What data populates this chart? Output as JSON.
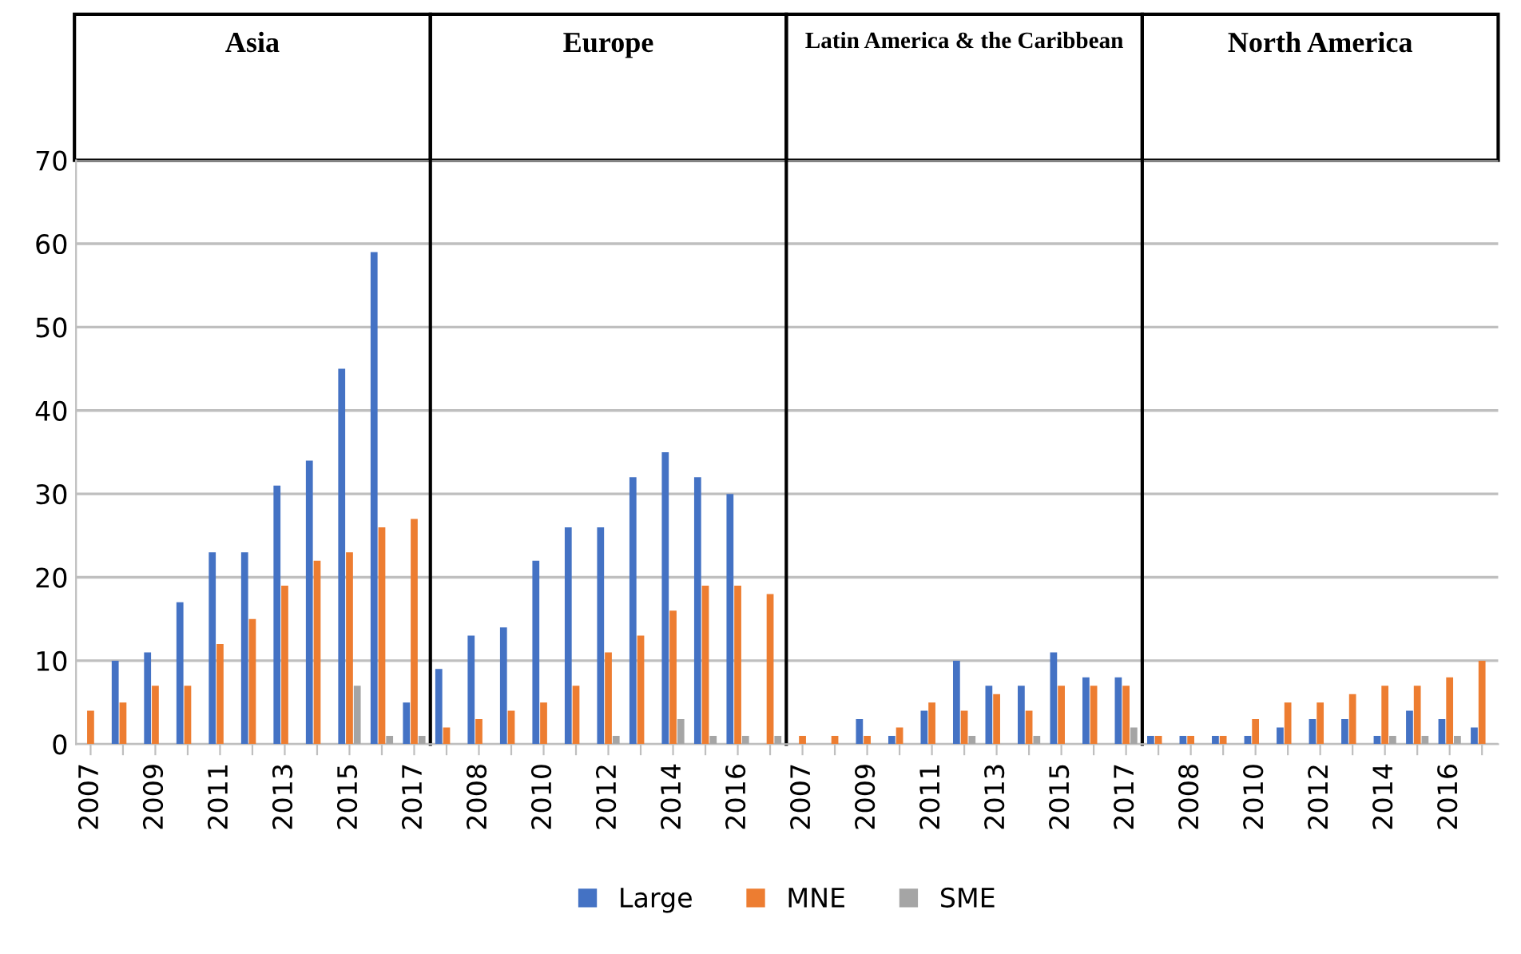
{
  "chart_data": {
    "type": "bar",
    "categories": [
      "2007",
      null,
      "2009",
      null,
      "2011",
      null,
      "2013",
      null,
      "2015",
      null,
      "2017",
      null,
      "2008",
      null,
      "2010",
      null,
      "2012",
      null,
      "2014",
      null,
      "2016",
      null,
      "2007",
      null,
      "2009",
      null,
      "2011",
      null,
      "2013",
      null,
      "2015",
      null,
      "2017",
      null,
      "2008",
      null,
      "2010",
      null,
      "2012",
      null,
      "2014",
      null,
      "2016",
      null
    ],
    "series": [
      {
        "name": "Large",
        "color": "#4472c4",
        "values": [
          0,
          10,
          11,
          17,
          23,
          23,
          31,
          34,
          45,
          59,
          5,
          9,
          13,
          14,
          22,
          26,
          26,
          32,
          35,
          32,
          30,
          0,
          0,
          0,
          3,
          1,
          4,
          10,
          7,
          7,
          11,
          8,
          8,
          1,
          1,
          1,
          1,
          2,
          3,
          3,
          1,
          4,
          3,
          2
        ]
      },
      {
        "name": "MNE",
        "color": "#ed7d31",
        "values": [
          4,
          5,
          7,
          7,
          12,
          15,
          19,
          22,
          23,
          26,
          27,
          2,
          3,
          4,
          5,
          7,
          11,
          13,
          16,
          19,
          19,
          18,
          1,
          1,
          1,
          2,
          5,
          4,
          6,
          4,
          7,
          7,
          7,
          1,
          1,
          1,
          3,
          5,
          5,
          6,
          7,
          7,
          8,
          10
        ]
      },
      {
        "name": "SME",
        "color": "#a5a5a5",
        "values": [
          0,
          0,
          0,
          0,
          0,
          0,
          0,
          0,
          7,
          1,
          1,
          0,
          0,
          0,
          0,
          0,
          1,
          0,
          3,
          1,
          1,
          1,
          0,
          0,
          0,
          0,
          0,
          1,
          0,
          1,
          0,
          0,
          2,
          0,
          0,
          0,
          0,
          0,
          0,
          0,
          1,
          1,
          1,
          0
        ]
      }
    ],
    "annotations": [
      "Asia",
      "Europe",
      "Latin America & the Caribbean",
      "North America"
    ],
    "ylim": [
      0,
      70
    ],
    "yticks": [
      0,
      10,
      20,
      30,
      40,
      50,
      60,
      70
    ],
    "grid": "y",
    "legend": "bottom"
  }
}
